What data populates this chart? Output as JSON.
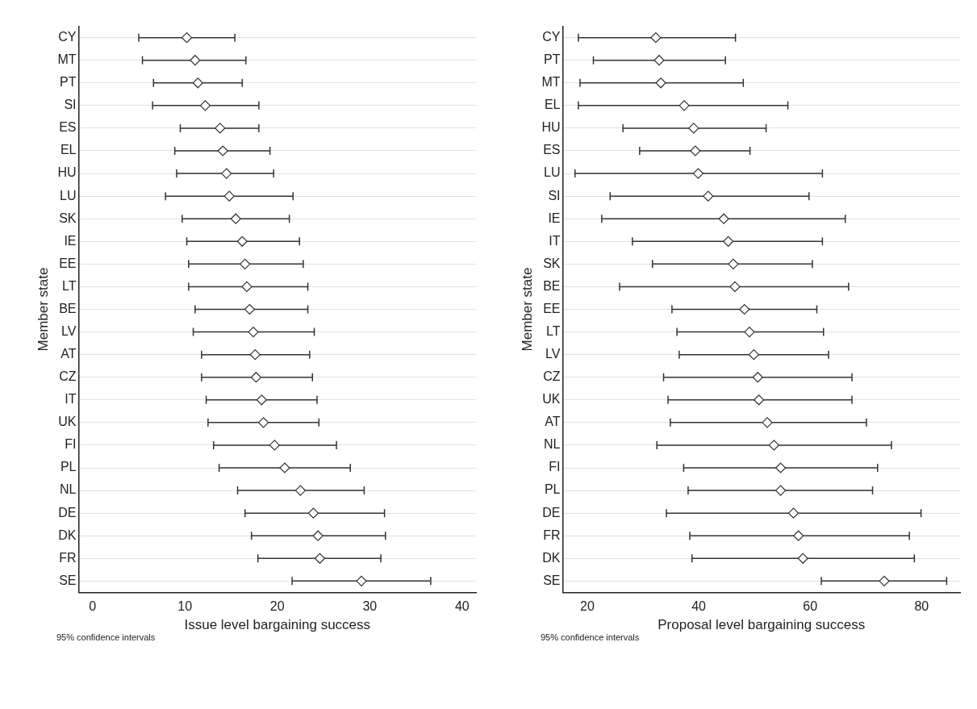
{
  "chart_data": [
    {
      "type": "scatter",
      "orientation": "horizontal",
      "xlabel": "Issue level bargaining success",
      "ylabel": "Member state",
      "annotations": [
        "95% confidence intervals"
      ],
      "marker": "diamond",
      "grid": "y",
      "color": "#333333",
      "categories": [
        "CY",
        "MT",
        "PT",
        "SI",
        "ES",
        "EL",
        "HU",
        "LU",
        "SK",
        "IE",
        "EE",
        "LT",
        "BE",
        "LV",
        "AT",
        "CZ",
        "IT",
        "UK",
        "FI",
        "PL",
        "NL",
        "DE",
        "DK",
        "FR",
        "SE"
      ],
      "values": [
        10.2,
        11.1,
        11.4,
        12.2,
        13.8,
        14.1,
        14.5,
        14.8,
        15.5,
        16.2,
        16.5,
        16.7,
        17.0,
        17.4,
        17.6,
        17.7,
        18.3,
        18.5,
        19.7,
        20.8,
        22.5,
        23.9,
        24.4,
        24.6,
        29.1
      ],
      "errors": [
        [
          5.0,
          15.4
        ],
        [
          5.4,
          16.6
        ],
        [
          6.6,
          16.2
        ],
        [
          6.5,
          18.0
        ],
        [
          9.5,
          18.0
        ],
        [
          8.9,
          19.2
        ],
        [
          9.1,
          19.6
        ],
        [
          7.9,
          21.7
        ],
        [
          9.7,
          21.3
        ],
        [
          10.2,
          22.4
        ],
        [
          10.4,
          22.8
        ],
        [
          10.4,
          23.3
        ],
        [
          11.1,
          23.3
        ],
        [
          10.9,
          24.0
        ],
        [
          11.8,
          23.5
        ],
        [
          11.8,
          23.8
        ],
        [
          12.3,
          24.3
        ],
        [
          12.5,
          24.5
        ],
        [
          13.1,
          26.4
        ],
        [
          13.7,
          27.9
        ],
        [
          15.7,
          29.4
        ],
        [
          16.5,
          31.6
        ],
        [
          17.2,
          31.7
        ],
        [
          17.9,
          31.2
        ],
        [
          21.6,
          36.6
        ]
      ],
      "xlim": [
        -1.5,
        41.5
      ],
      "xticks": [
        0,
        10,
        20,
        30,
        40
      ]
    },
    {
      "type": "scatter",
      "orientation": "horizontal",
      "xlabel": "Proposal level bargaining success",
      "ylabel": "Member state",
      "annotations": [
        "95% confidence intervals"
      ],
      "marker": "diamond",
      "grid": "y",
      "color": "#333333",
      "categories": [
        "CY",
        "PT",
        "MT",
        "EL",
        "HU",
        "ES",
        "LU",
        "SI",
        "IE",
        "IT",
        "SK",
        "BE",
        "EE",
        "LT",
        "LV",
        "CZ",
        "UK",
        "AT",
        "NL",
        "FI",
        "PL",
        "DE",
        "FR",
        "DK",
        "SE"
      ],
      "values": [
        32.3,
        32.9,
        33.2,
        37.4,
        39.1,
        39.4,
        39.9,
        41.7,
        44.5,
        45.3,
        46.2,
        46.5,
        48.2,
        49.1,
        49.9,
        50.6,
        50.8,
        52.3,
        53.5,
        54.7,
        54.7,
        57.0,
        57.9,
        58.7,
        73.3
      ],
      "errors": [
        [
          18.4,
          46.6
        ],
        [
          21.1,
          44.8
        ],
        [
          18.7,
          48.0
        ],
        [
          18.4,
          56.0
        ],
        [
          26.4,
          52.1
        ],
        [
          29.4,
          49.2
        ],
        [
          17.8,
          62.2
        ],
        [
          24.1,
          59.8
        ],
        [
          22.6,
          66.3
        ],
        [
          28.1,
          62.2
        ],
        [
          31.7,
          60.4
        ],
        [
          25.8,
          66.9
        ],
        [
          35.2,
          61.2
        ],
        [
          36.1,
          62.4
        ],
        [
          36.5,
          63.3
        ],
        [
          33.7,
          67.5
        ],
        [
          34.5,
          67.5
        ],
        [
          34.9,
          70.1
        ],
        [
          32.5,
          74.6
        ],
        [
          37.3,
          72.1
        ],
        [
          38.1,
          71.2
        ],
        [
          34.2,
          79.9
        ],
        [
          38.4,
          77.8
        ],
        [
          38.8,
          78.7
        ],
        [
          62.0,
          84.5
        ]
      ],
      "xlim": [
        15.6,
        86.9
      ],
      "xticks": [
        20,
        40,
        60,
        80
      ]
    }
  ]
}
